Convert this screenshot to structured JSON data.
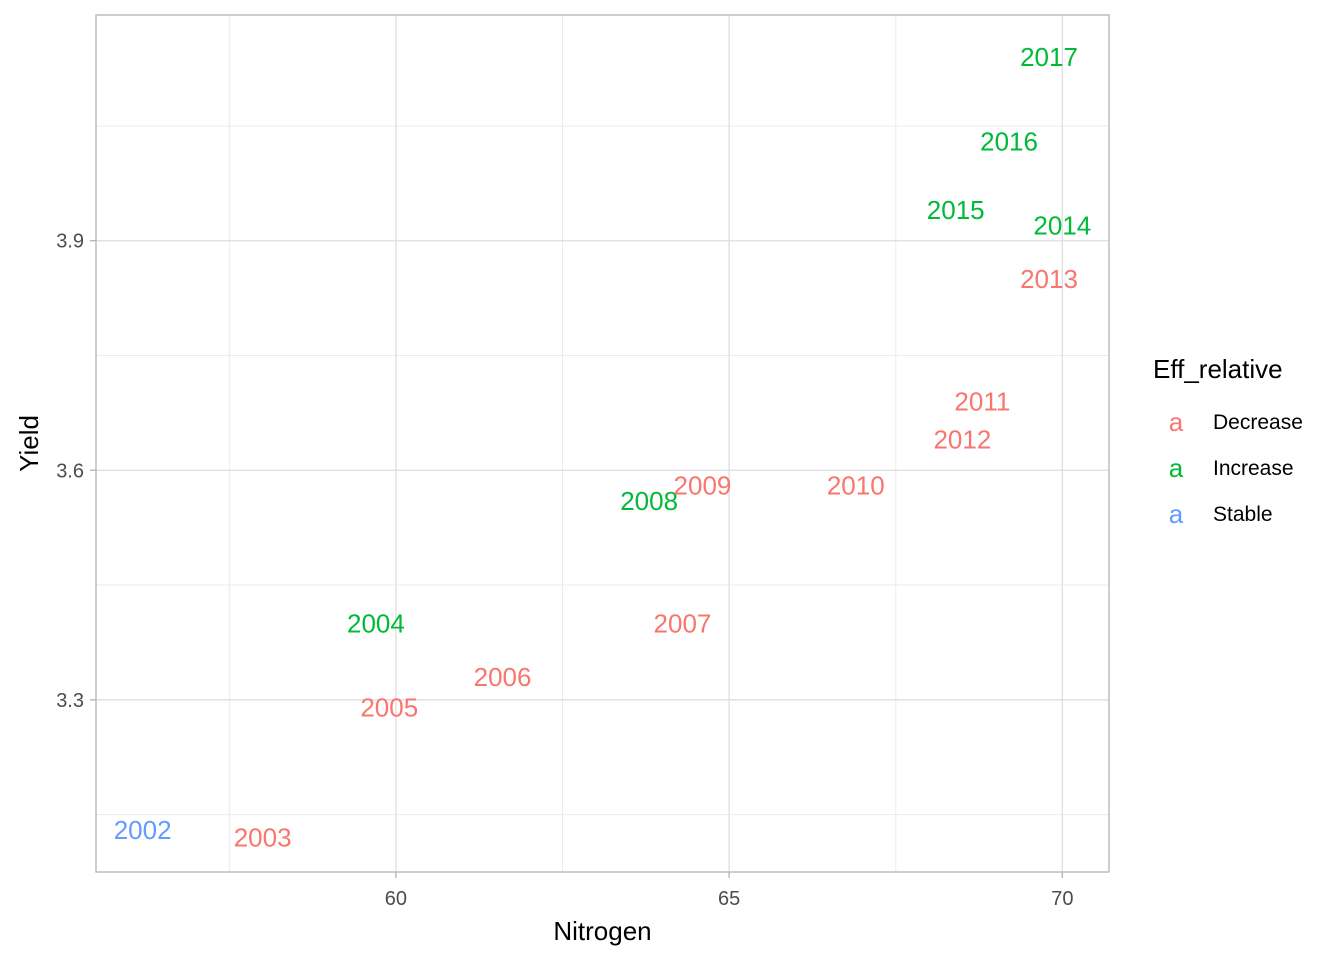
{
  "chart_data": {
    "type": "scatter",
    "title": "",
    "xlabel": "Nitrogen",
    "ylabel": "Yield",
    "xlim": [
      55.5,
      70.7
    ],
    "ylim": [
      3.075,
      4.195
    ],
    "x_ticks": [
      60,
      65,
      70
    ],
    "x_tick_labels": [
      "60",
      "65",
      "70"
    ],
    "y_ticks": [
      3.3,
      3.6,
      3.9
    ],
    "y_tick_labels": [
      "3.3",
      "3.6",
      "3.9"
    ],
    "x_minor_ticks": [
      57.5,
      62.5,
      67.5
    ],
    "y_minor_ticks": [
      3.15,
      3.45,
      3.75,
      4.05
    ],
    "grid": true,
    "legend": {
      "title": "Eff_relative",
      "placement": "right",
      "key_glyph": "a",
      "entries": [
        {
          "label": "Decrease",
          "color": "#F8766D"
        },
        {
          "label": "Increase",
          "color": "#00BA38"
        },
        {
          "label": "Stable",
          "color": "#619CFF"
        }
      ]
    },
    "points": [
      {
        "label": "2002",
        "x": 56.2,
        "y": 3.13,
        "group": "Stable"
      },
      {
        "label": "2003",
        "x": 58.0,
        "y": 3.12,
        "group": "Decrease"
      },
      {
        "label": "2004",
        "x": 59.7,
        "y": 3.4,
        "group": "Increase"
      },
      {
        "label": "2005",
        "x": 59.9,
        "y": 3.29,
        "group": "Decrease"
      },
      {
        "label": "2006",
        "x": 61.6,
        "y": 3.33,
        "group": "Decrease"
      },
      {
        "label": "2007",
        "x": 64.3,
        "y": 3.4,
        "group": "Decrease"
      },
      {
        "label": "2008",
        "x": 63.8,
        "y": 3.56,
        "group": "Increase"
      },
      {
        "label": "2009",
        "x": 64.6,
        "y": 3.58,
        "group": "Decrease"
      },
      {
        "label": "2010",
        "x": 66.9,
        "y": 3.58,
        "group": "Decrease"
      },
      {
        "label": "2011",
        "x": 68.8,
        "y": 3.69,
        "group": "Decrease"
      },
      {
        "label": "2012",
        "x": 68.5,
        "y": 3.64,
        "group": "Decrease"
      },
      {
        "label": "2013",
        "x": 69.8,
        "y": 3.85,
        "group": "Decrease"
      },
      {
        "label": "2014",
        "x": 70.0,
        "y": 3.92,
        "group": "Increase"
      },
      {
        "label": "2015",
        "x": 68.4,
        "y": 3.94,
        "group": "Increase"
      },
      {
        "label": "2016",
        "x": 69.2,
        "y": 4.03,
        "group": "Increase"
      },
      {
        "label": "2017",
        "x": 69.8,
        "y": 4.14,
        "group": "Increase"
      }
    ]
  }
}
